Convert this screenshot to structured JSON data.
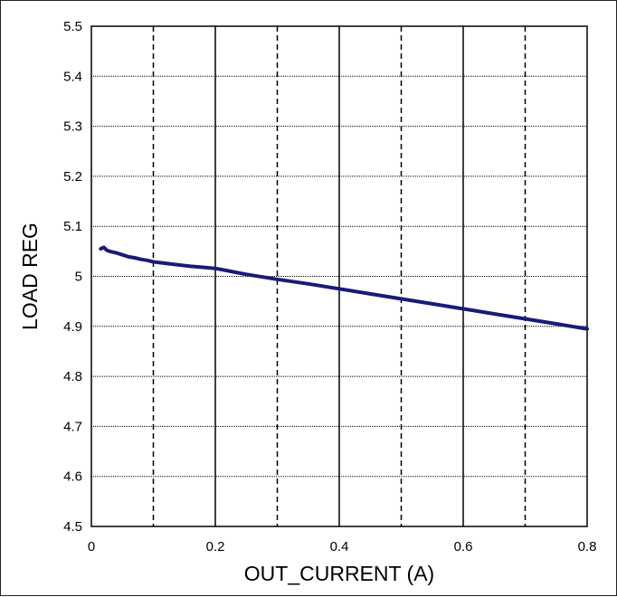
{
  "chart_data": {
    "type": "line",
    "title": "",
    "xlabel": "OUT_CURRENT (A)",
    "ylabel": "LOAD REG",
    "xlim": [
      0,
      0.8
    ],
    "ylim": [
      4.5,
      5.5
    ],
    "x_ticks": [
      0,
      0.2,
      0.4,
      0.6,
      0.8
    ],
    "x_tick_labels": [
      "0",
      "0.2",
      "0.4",
      "0.6",
      "0.8"
    ],
    "y_ticks": [
      4.5,
      4.6,
      4.7,
      4.8,
      4.9,
      5.0,
      5.1,
      5.2,
      5.3,
      5.4,
      5.5
    ],
    "y_tick_labels": [
      "4.5",
      "4.6",
      "4.7",
      "4.8",
      "4.9",
      "5",
      "5.1",
      "5.2",
      "5.3",
      "5.4",
      "5.5"
    ],
    "grid": true,
    "legend": "none",
    "series": [
      {
        "color": "#1a1a7a",
        "x": [
          0.015,
          0.02,
          0.025,
          0.03,
          0.04,
          0.05,
          0.06,
          0.07,
          0.08,
          0.09,
          0.1,
          0.12,
          0.14,
          0.16,
          0.18,
          0.2,
          0.25,
          0.3,
          0.35,
          0.4,
          0.45,
          0.5,
          0.55,
          0.6,
          0.65,
          0.7,
          0.75,
          0.8
        ],
        "values": [
          5.055,
          5.058,
          5.052,
          5.05,
          5.047,
          5.043,
          5.039,
          5.037,
          5.034,
          5.032,
          5.029,
          5.026,
          5.023,
          5.02,
          5.018,
          5.016,
          5.004,
          4.994,
          4.985,
          4.975,
          4.965,
          4.955,
          4.945,
          4.935,
          4.925,
          4.915,
          4.905,
          4.895
        ]
      }
    ]
  }
}
